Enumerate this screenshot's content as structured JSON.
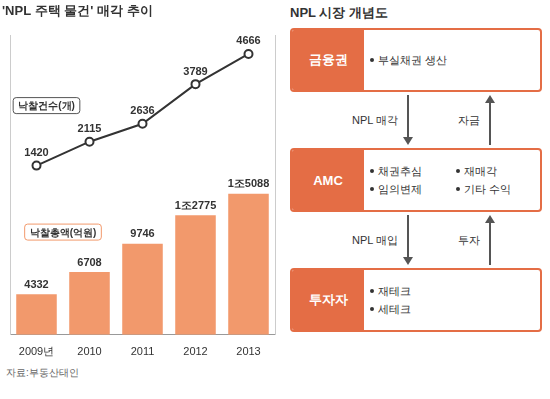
{
  "chart_data": {
    "type": "bar",
    "title": "'NPL 주택 물건' 매각 추이",
    "source": "자료:부동산태인",
    "categories": [
      "2009년",
      "2010",
      "2011",
      "2012",
      "2013"
    ],
    "series": [
      {
        "name": "낙찰총액(억원)",
        "type": "bar",
        "color": "#f2996c",
        "values": [
          4332,
          6708,
          9746,
          12775,
          15088
        ],
        "value_labels": [
          "4332",
          "6708",
          "9746",
          "1조2775",
          "1조5088"
        ]
      },
      {
        "name": "낙찰건수(개)",
        "type": "line",
        "color": "#333333",
        "marker": "circle",
        "line_style": "solid",
        "axis": "y2",
        "values": [
          1420,
          2115,
          2636,
          3789,
          4666
        ]
      }
    ],
    "ylim": [
      0,
      32000
    ],
    "y2lim": [
      -3500,
      5200
    ],
    "grid": false,
    "data_labels": true,
    "tick_labels": "x"
  },
  "diagram": {
    "title": "NPL 시장 개념도",
    "nodes": [
      {
        "label": "금융권",
        "items": [
          "부실채권 생산"
        ]
      },
      {
        "label": "AMC",
        "items": [
          "채권추심",
          "재매각",
          "임의변제",
          "기타 수익"
        ]
      },
      {
        "label": "투자자",
        "items": [
          "재테크",
          "세테크"
        ]
      }
    ],
    "edges": [
      {
        "from": 0,
        "to": 1,
        "label": "NPL 매각"
      },
      {
        "from": 1,
        "to": 0,
        "label": "자금"
      },
      {
        "from": 1,
        "to": 2,
        "label": "NPL 매입"
      },
      {
        "from": 2,
        "to": 1,
        "label": "투자"
      }
    ]
  }
}
